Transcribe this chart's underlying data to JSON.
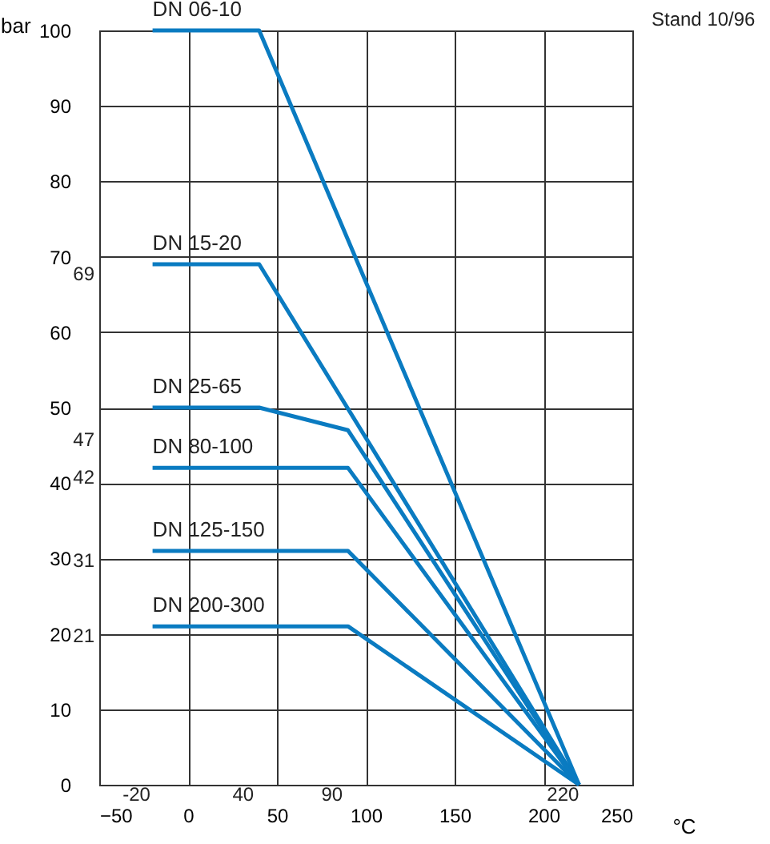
{
  "chart_data": {
    "type": "line",
    "xlabel": "°C",
    "ylabel": "bar",
    "annotations": [
      "Stand 10/96",
      "-20",
      "40",
      "90",
      "220",
      "69",
      "47",
      "42",
      "31",
      "21"
    ],
    "series": [
      {
        "name": "DN 06-10",
        "color": "#0a7bc1",
        "x": [
          -20,
          40,
          220
        ],
        "values": [
          100,
          100,
          0
        ]
      },
      {
        "name": "DN 15-20",
        "color": "#0a7bc1",
        "x": [
          -20,
          40,
          220
        ],
        "values": [
          69,
          69,
          0
        ]
      },
      {
        "name": "DN 25-65",
        "color": "#0a7bc1",
        "x": [
          -20,
          40,
          90,
          220
        ],
        "values": [
          50,
          50,
          47,
          0
        ]
      },
      {
        "name": "DN 80-100",
        "color": "#0a7bc1",
        "x": [
          -20,
          90,
          220
        ],
        "values": [
          42,
          42,
          0
        ]
      },
      {
        "name": "DN 125-150",
        "color": "#0a7bc1",
        "x": [
          -20,
          90,
          220
        ],
        "values": [
          31,
          31,
          0
        ]
      },
      {
        "name": "DN 200-300",
        "color": "#0a7bc1",
        "x": [
          -20,
          90,
          220
        ],
        "values": [
          21,
          21,
          0
        ]
      }
    ],
    "xlim": [
      -50,
      250
    ],
    "xticks": [
      -50,
      0,
      50,
      100,
      150,
      200,
      250
    ],
    "ylim": [
      0,
      100
    ],
    "yticks": [
      0,
      10,
      20,
      30,
      40,
      50,
      60,
      70,
      80,
      90,
      100
    ],
    "grid": true,
    "line_style": "solid"
  }
}
